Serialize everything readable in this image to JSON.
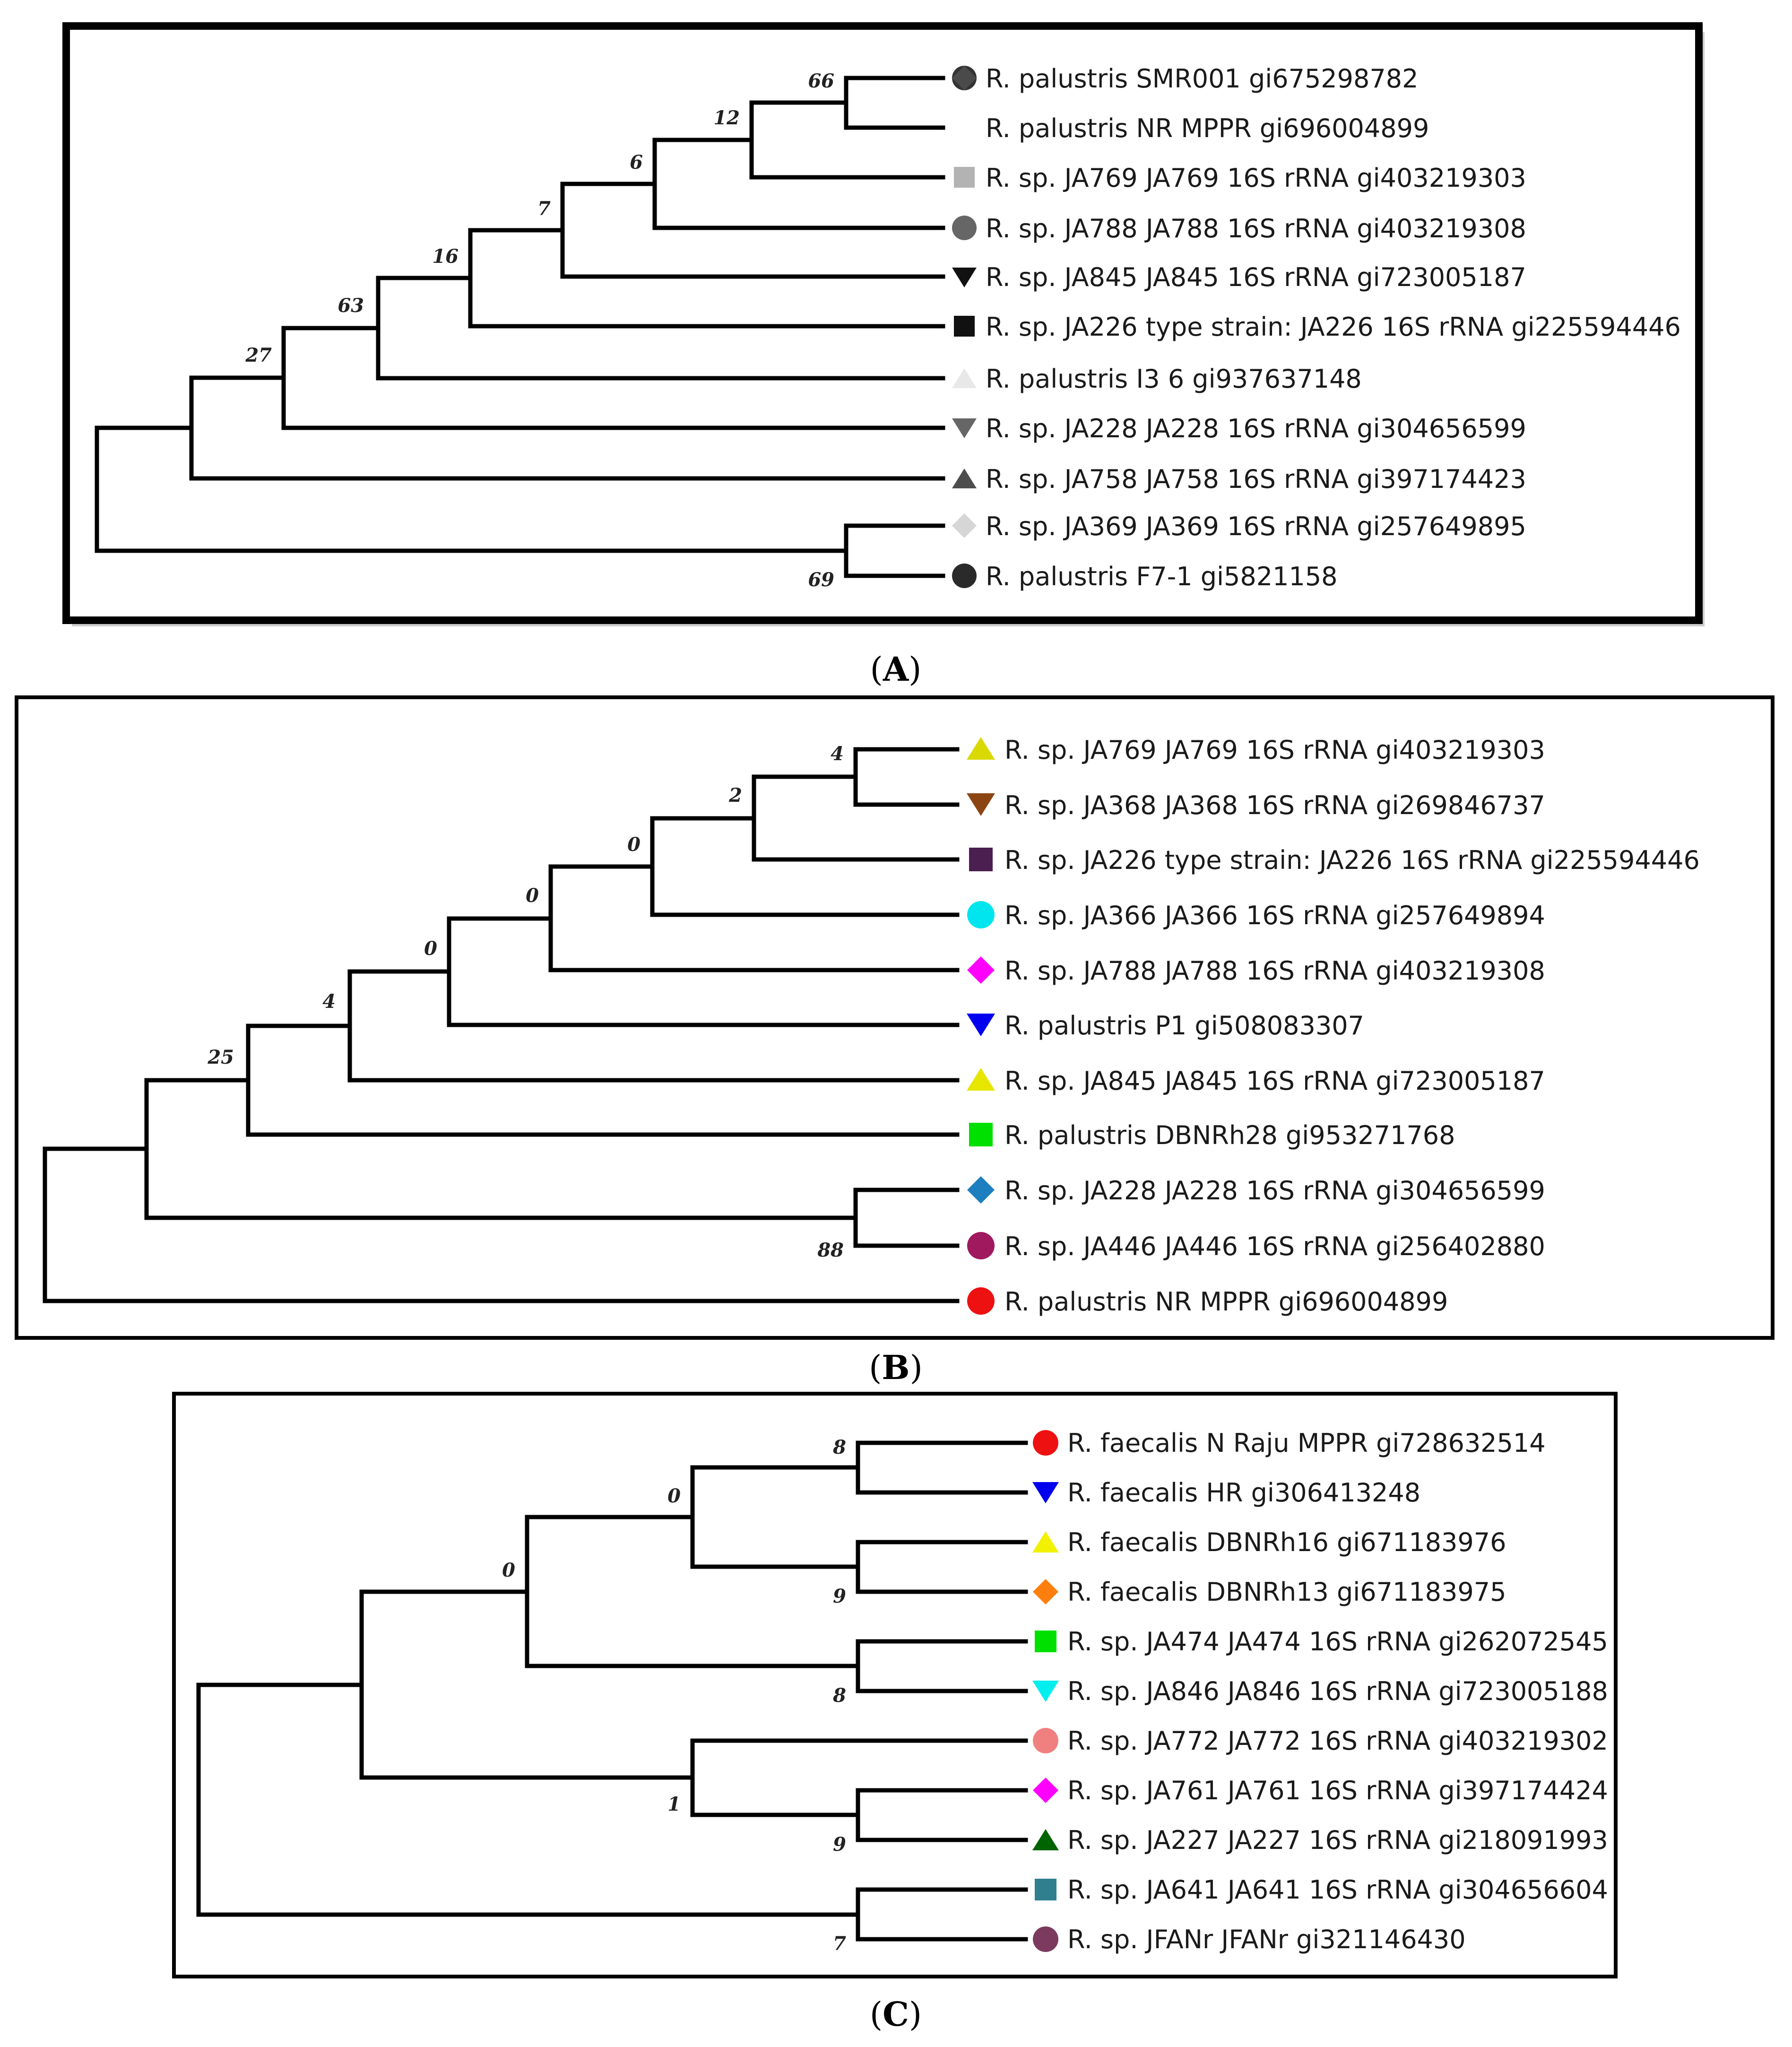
{
  "figure": {
    "panels": [
      {
        "id": "A",
        "caption_letter": "A",
        "leaves": [
          {
            "label": "R. palustris SMR001 gi675298782",
            "marker": "circle",
            "color": "#333333"
          },
          {
            "label": "R. palustris NR MPPR gi696004899",
            "marker": "diamond",
            "color": "#4a4a4a"
          },
          {
            "label": "R. sp. JA769 JA769 16S rRNA gi403219303",
            "marker": "square",
            "color": "#b3b3b3"
          },
          {
            "label": "R. sp. JA788 JA788 16S rRNA gi403219308",
            "marker": "circle",
            "color": "#666666"
          },
          {
            "label": "R. sp. JA845 JA845 16S rRNA gi723005187",
            "marker": "triangle-down",
            "color": "#111111"
          },
          {
            "label": "R. sp. JA226 type strain: JA226 16S rRNA gi225594446",
            "marker": "square",
            "color": "#111111"
          },
          {
            "label": "R. palustris I3 6 gi937637148",
            "marker": "triangle-up",
            "color": "#e8e8e8"
          },
          {
            "label": "R. sp. JA228 JA228 16S rRNA gi304656599",
            "marker": "triangle-down",
            "color": "#666666"
          },
          {
            "label": "R. sp. JA758 JA758 16S rRNA gi397174423",
            "marker": "triangle-up",
            "color": "#4d4d4d"
          },
          {
            "label": "R. sp. JA369 JA369 16S rRNA gi257649895",
            "marker": "diamond",
            "color": "#d6d6d6"
          },
          {
            "label": "R. palustris F7-1 gi5821158",
            "marker": "circle",
            "color": "#2a2a2a"
          }
        ],
        "bootstrap": [
          "66",
          "12",
          "6",
          "7",
          "16",
          "63",
          "27",
          "69"
        ]
      },
      {
        "id": "B",
        "caption_letter": "B",
        "leaves": [
          {
            "label": "R. sp. JA769 JA769 16S rRNA gi403219303",
            "marker": "triangle-up",
            "color": "#d9d900"
          },
          {
            "label": "R. sp. JA368 JA368 16S rRNA gi269846737",
            "marker": "triangle-down",
            "color": "#8b4513"
          },
          {
            "label": "R. sp. JA226 type strain: JA226 16S rRNA gi225594446",
            "marker": "square",
            "color": "#4b1f4f"
          },
          {
            "label": "R. sp. JA366 JA366 16S rRNA gi257649894",
            "marker": "circle",
            "color": "#00e5ee"
          },
          {
            "label": "R. sp. JA788 JA788 16S rRNA gi403219308",
            "marker": "diamond",
            "color": "#ff00ff"
          },
          {
            "label": "R. palustris P1 gi508083307",
            "marker": "triangle-down",
            "color": "#0000ee"
          },
          {
            "label": "R. sp. JA845 JA845 16S rRNA gi723005187",
            "marker": "triangle-up",
            "color": "#e6e600"
          },
          {
            "label": "R. palustris DBNRh28 gi953271768",
            "marker": "square",
            "color": "#00e000"
          },
          {
            "label": "R. sp. JA228 JA228 16S rRNA gi304656599",
            "marker": "diamond",
            "color": "#1e7fc0"
          },
          {
            "label": "R. sp. JA446 JA446 16S rRNA gi256402880",
            "marker": "circle",
            "color": "#a0195e"
          },
          {
            "label": "R. palustris NR MPPR gi696004899",
            "marker": "circle",
            "color": "#ee1111"
          }
        ],
        "bootstrap": [
          "4",
          "2",
          "0",
          "0",
          "0",
          "4",
          "25",
          "88"
        ]
      },
      {
        "id": "C",
        "caption_letter": "C",
        "leaves": [
          {
            "label": "R. faecalis N Raju MPPR gi728632514",
            "marker": "circle",
            "color": "#ee1111"
          },
          {
            "label": "R. faecalis HR gi306413248",
            "marker": "triangle-down",
            "color": "#0000ee"
          },
          {
            "label": "R. faecalis DBNRh16 gi671183976",
            "marker": "triangle-up",
            "color": "#f2f200"
          },
          {
            "label": "R. faecalis DBNRh13 gi671183975",
            "marker": "diamond",
            "color": "#ff7f0e"
          },
          {
            "label": "R. sp. JA474 JA474 16S rRNA gi262072545",
            "marker": "square",
            "color": "#00e000"
          },
          {
            "label": "R. sp. JA846 JA846 16S rRNA gi723005188",
            "marker": "triangle-down",
            "color": "#00eeee"
          },
          {
            "label": "R. sp. JA772 JA772 16S rRNA gi403219302",
            "marker": "circle",
            "color": "#f08080"
          },
          {
            "label": "R. sp. JA761 JA761 16S rRNA gi397174424",
            "marker": "diamond",
            "color": "#ff00ff"
          },
          {
            "label": "R. sp. JA227 JA227 16S rRNA gi218091993",
            "marker": "triangle-up",
            "color": "#006400"
          },
          {
            "label": "R. sp. JA641 JA641 16S rRNA gi304656604",
            "marker": "square",
            "color": "#2f7f8f"
          },
          {
            "label": "R. sp. JFANr JFANr gi321146430",
            "marker": "circle",
            "color": "#7b3a5e"
          }
        ],
        "bootstrap": [
          "8",
          "0",
          "9",
          "0",
          "8",
          "9",
          "1",
          "7"
        ]
      }
    ]
  }
}
